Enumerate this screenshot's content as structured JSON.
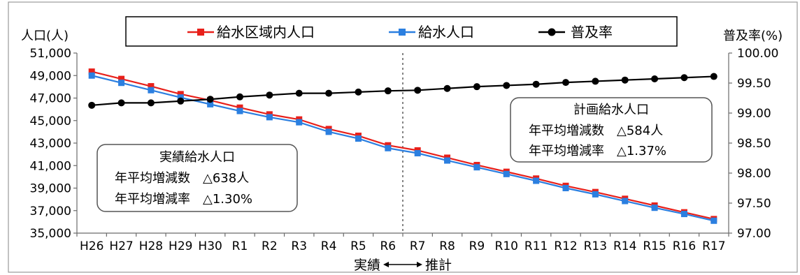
{
  "chart_data": {
    "type": "line",
    "categories": [
      "H26",
      "H27",
      "H28",
      "H29",
      "H30",
      "R1",
      "R2",
      "R3",
      "R4",
      "R5",
      "R6",
      "R7",
      "R8",
      "R9",
      "R10",
      "R11",
      "R12",
      "R13",
      "R14",
      "R15",
      "R16",
      "R17"
    ],
    "y_left": {
      "label": "人口(人)",
      "ylim": [
        35000,
        51000
      ],
      "ticks": [
        "35,000",
        "37,000",
        "39,000",
        "41,000",
        "43,000",
        "45,000",
        "47,000",
        "49,000",
        "51,000"
      ],
      "tick_values": [
        35000,
        37000,
        39000,
        41000,
        43000,
        45000,
        47000,
        49000,
        51000
      ]
    },
    "y_right": {
      "label": "普及率(%)",
      "ylim": [
        97.0,
        100.0
      ],
      "ticks": [
        "97.00",
        "97.50",
        "98.00",
        "98.50",
        "99.00",
        "99.50",
        "100.00"
      ],
      "tick_values": [
        97.0,
        97.5,
        98.0,
        98.5,
        99.0,
        99.5,
        100.0
      ]
    },
    "series": [
      {
        "name": "給水区域内人口",
        "axis": "left",
        "color": "#e8201a",
        "values": [
          49350,
          48700,
          48050,
          47350,
          46800,
          46150,
          45550,
          45100,
          44250,
          43650,
          42800,
          42350,
          41700,
          41050,
          40450,
          39850,
          39200,
          38650,
          38050,
          37450,
          36850,
          36250
        ]
      },
      {
        "name": "給水人口",
        "axis": "left",
        "color": "#2b7fe0",
        "values": [
          49000,
          48350,
          47700,
          47050,
          46450,
          45850,
          45300,
          44850,
          44000,
          43400,
          42550,
          42100,
          41450,
          40850,
          40250,
          39650,
          39000,
          38450,
          37850,
          37250,
          36700,
          36100
        ]
      },
      {
        "name": "普及率",
        "axis": "right",
        "color": "#000000",
        "values": [
          99.13,
          99.17,
          99.17,
          99.2,
          99.23,
          99.27,
          99.3,
          99.33,
          99.33,
          99.35,
          99.37,
          99.38,
          99.41,
          99.44,
          99.46,
          99.48,
          99.51,
          99.53,
          99.55,
          99.57,
          99.59,
          99.61
        ]
      }
    ],
    "divider_after": "R6",
    "period_labels": {
      "actual": "実績",
      "forecast": "推計"
    },
    "annotations": [
      {
        "title": "実績給水人口",
        "line1": "年平均増減数　△638人",
        "line2": "年平均増減率　△1.30%"
      },
      {
        "title": "計画給水人口",
        "line1": "年平均増減数　△584人",
        "line2": "年平均増減率　△1.37%"
      }
    ],
    "legend_placement": "top-center",
    "grid": false
  }
}
